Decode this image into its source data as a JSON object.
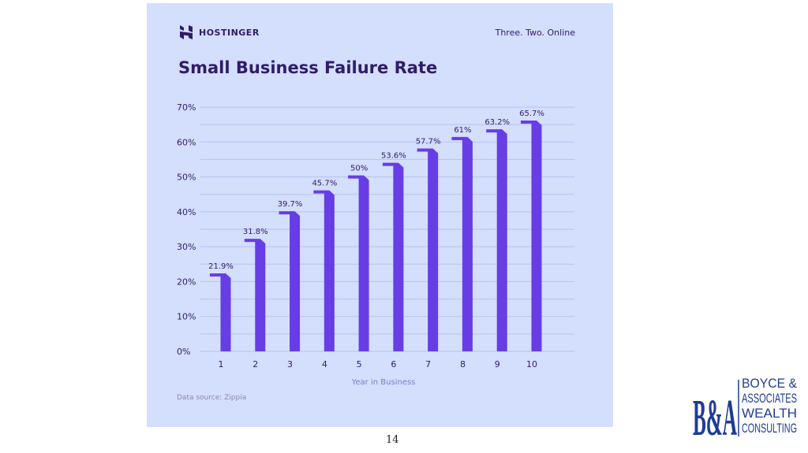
{
  "brand": {
    "name": "HOSTINGER",
    "tagline": "Three. Two. Online",
    "color": "#673de6"
  },
  "footer": {
    "source": "Data source: Zippia",
    "page_number": "14"
  },
  "consultant_logo": {
    "initials": "B&A",
    "lines": [
      "BOYCE &",
      "ASSOCIATES",
      "WEALTH",
      "CONSULTING"
    ],
    "color": "#1e3c96"
  },
  "chart_data": {
    "type": "bar",
    "title": "Small Business Failure Rate",
    "xlabel": "Year in Business",
    "ylabel": "",
    "categories": [
      "1",
      "2",
      "3",
      "4",
      "5",
      "6",
      "7",
      "8",
      "9",
      "10"
    ],
    "values": [
      21.9,
      31.8,
      39.7,
      45.7,
      50,
      53.6,
      57.7,
      61,
      63.2,
      65.7
    ],
    "data_labels": [
      "21.9%",
      "31.8%",
      "39.7%",
      "45.7%",
      "50%",
      "53.6%",
      "57.7%",
      "61%",
      "63.2%",
      "65.7%"
    ],
    "ylim": [
      0,
      70
    ],
    "yticks": [
      "0%",
      "10%",
      "20%",
      "30%",
      "40%",
      "50%",
      "60%",
      "70%"
    ],
    "grid": true,
    "bar_color": "#673de6"
  }
}
